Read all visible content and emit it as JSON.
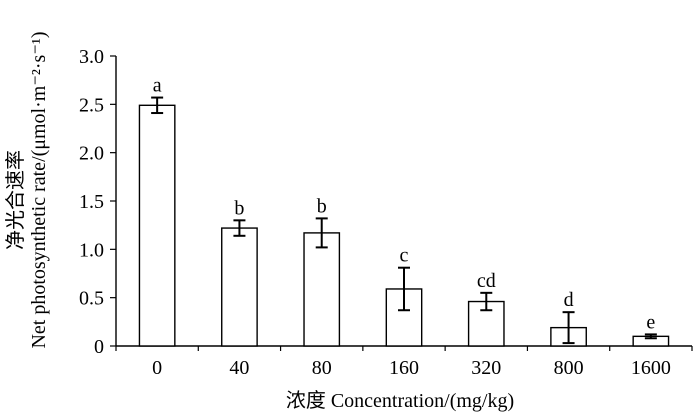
{
  "chart_data": {
    "type": "bar",
    "categories": [
      "0",
      "40",
      "80",
      "160",
      "320",
      "800",
      "1600"
    ],
    "values": [
      2.49,
      1.22,
      1.17,
      0.59,
      0.46,
      0.19,
      0.1
    ],
    "errors": [
      0.08,
      0.08,
      0.15,
      0.22,
      0.09,
      0.16,
      0.02
    ],
    "significance_letters": [
      "a",
      "b",
      "b",
      "c",
      "cd",
      "d",
      "e"
    ],
    "title": "",
    "xlabel": "浓度 Concentration/(mg/kg)",
    "ylabel_line1": "净光合速率",
    "ylabel_line2": "Net photosynthetic rate/(μmol·m⁻²·s⁻¹)",
    "ylim": [
      0,
      3.0
    ],
    "yticks": [
      "0",
      "0.5",
      "1.0",
      "1.5",
      "2.0",
      "2.5",
      "3.0"
    ],
    "grid": false,
    "legend": "none"
  }
}
